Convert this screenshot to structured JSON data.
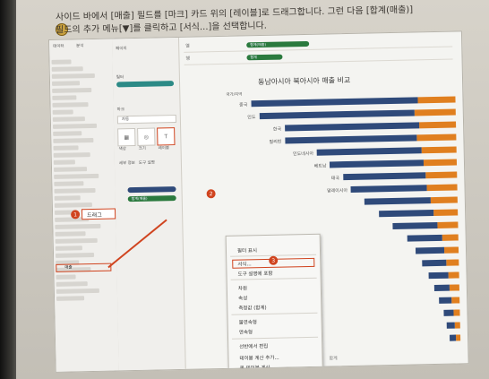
{
  "book": {
    "line1": "사이드 바에서 [매출] 필드를 [마크] 카드 위의 [레이블]로 드래그합니다. 그런 다음 [합계(매출)]",
    "line2": "필드의 추가 메뉴[▼]를 클릭하고 [서식...]을 선택합니다."
  },
  "tableau": {
    "sidebar_tabs": [
      "데이터",
      "분석"
    ],
    "shelf_cols": "열",
    "shelf_rows": "행",
    "pill_cols": "합계(매출)",
    "pill_rows": "합계",
    "pages_label": "페이지",
    "filters_label": "필터",
    "marks_label": "마크",
    "marks_type": "자동",
    "mark_buttons": [
      "색상",
      "크기",
      "레이블"
    ],
    "mark_buttons2": [
      "세부 정보",
      "도구 설명"
    ],
    "drag_pill": "합계(매출)",
    "sidebar_field": "매출",
    "chart_title": "동남아시아 북아시아 매출 비교",
    "axis_label": "국가/지역",
    "x_axis_title": "합계"
  },
  "chart_data": {
    "type": "bar",
    "title": "동남아시아 북아시아 매출 비교",
    "categories": [
      "중국",
      "인도",
      "한국",
      "필리핀",
      "인도네시아",
      "베트남",
      "태국",
      "말레이시아",
      "미얀마",
      "캄보디아",
      "싱가포르",
      "몽골",
      "대만",
      "라오스",
      "홍콩",
      "방글라데시",
      "네팔",
      "스리랑카",
      "파키스탄",
      "부탄"
    ],
    "series": [
      {
        "name": "동남아시아",
        "values": [
          210,
          196,
          170,
          166,
          132,
          118,
          104,
          96,
          84,
          70,
          56,
          44,
          36,
          30,
          24,
          20,
          16,
          12,
          10,
          8
        ]
      },
      {
        "name": "북아시아",
        "values": [
          48,
          52,
          46,
          50,
          44,
          42,
          40,
          38,
          34,
          30,
          26,
          20,
          18,
          16,
          14,
          12,
          10,
          8,
          7,
          6
        ]
      }
    ]
  },
  "context_menu": {
    "items": [
      "필터 표시",
      "서식...",
      "도구 설명에 포함",
      "차원",
      "속성",
      "측정값 (합계)",
      "불연속형",
      "연속형",
      "선반에서 편집",
      "테이블 계산 추가...",
      "퀵 테이블 계산",
      "제거"
    ]
  },
  "callouts": [
    {
      "num": "1",
      "label": "드래그"
    },
    {
      "num": "2",
      "label": ""
    },
    {
      "num": "3",
      "label": ""
    }
  ],
  "colors": {
    "blue": "#2f4a7a",
    "orange": "#e07f1f",
    "callout": "#d0441f"
  }
}
